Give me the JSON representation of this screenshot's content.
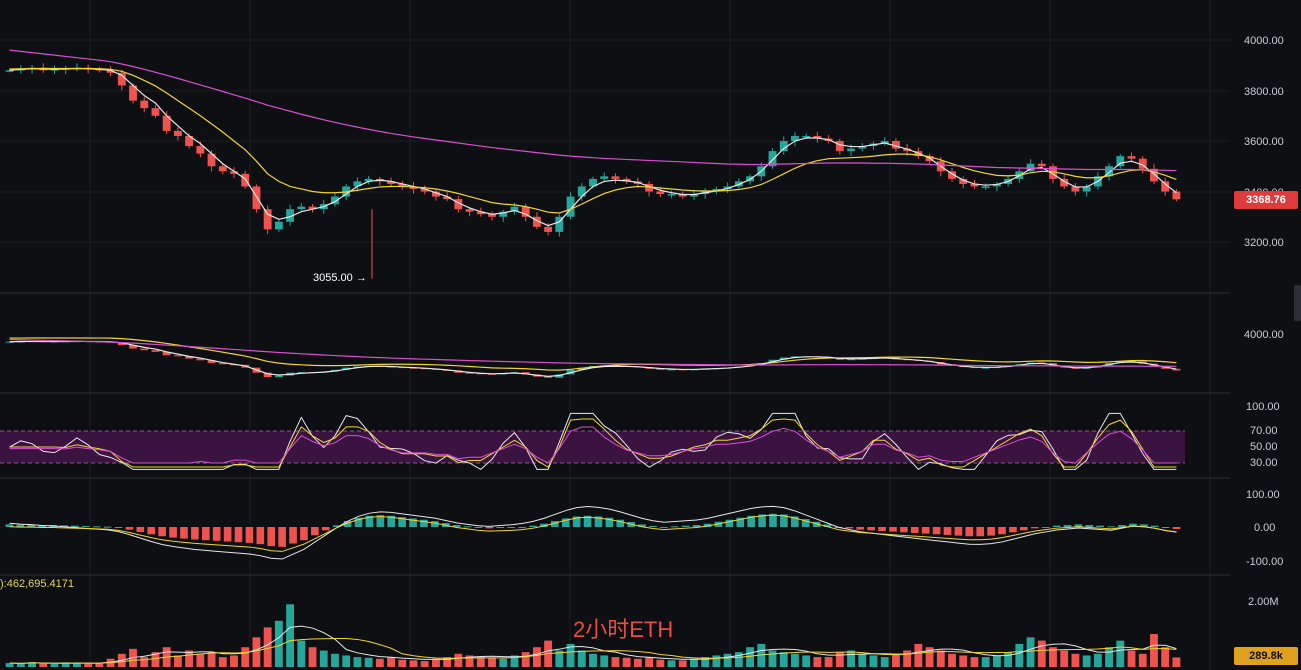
{
  "colors": {
    "up": "#26a69a",
    "down": "#ef5350",
    "ma_fast": "#e6e6e6",
    "ma_mid": "#f1d530",
    "ma_slow": "#d94fd1",
    "rsi_band": "#3a1340"
  },
  "overlay_title": "2小时ETH",
  "price_tag": "3368.76",
  "volume_tag": "289.8k",
  "low_marker": "3055.00 →",
  "volume_readout": "):462,695.4171",
  "chart_data": [
    {
      "type": "candlestick",
      "title": "",
      "y_ticks": [
        "4000.00",
        "3800.00",
        "3600.00",
        "3400.00",
        "3200.00"
      ],
      "ylim": [
        3000,
        4100
      ],
      "series": [
        {
          "name": "",
          "values": []
        }
      ],
      "last_price": 3368.76,
      "low_annotation": 3055.0,
      "close_path": [
        3880,
        3885,
        3890,
        3880,
        3885,
        3888,
        3890,
        3885,
        3880,
        3870,
        3820,
        3760,
        3730,
        3700,
        3640,
        3620,
        3580,
        3550,
        3500,
        3480,
        3470,
        3420,
        3330,
        3250,
        3280,
        3330,
        3340,
        3330,
        3350,
        3380,
        3420,
        3440,
        3450,
        3440,
        3430,
        3420,
        3410,
        3400,
        3380,
        3370,
        3330,
        3320,
        3310,
        3300,
        3320,
        3340,
        3300,
        3260,
        3240,
        3300,
        3380,
        3420,
        3450,
        3460,
        3450,
        3440,
        3430,
        3400,
        3390,
        3390,
        3380,
        3390,
        3400,
        3410,
        3420,
        3440,
        3460,
        3500,
        3560,
        3600,
        3620,
        3620,
        3610,
        3600,
        3560,
        3570,
        3580,
        3590,
        3600,
        3570,
        3560,
        3540,
        3520,
        3480,
        3450,
        3430,
        3420,
        3420,
        3430,
        3450,
        3480,
        3510,
        3500,
        3450,
        3420,
        3400,
        3420,
        3460,
        3500,
        3540,
        3530,
        3490,
        3440,
        3400,
        3369
      ],
      "ma_fast_path": [
        3880,
        3884,
        3886,
        3885,
        3884,
        3885,
        3887,
        3886,
        3884,
        3880,
        3860,
        3820,
        3780,
        3750,
        3700,
        3660,
        3620,
        3590,
        3550,
        3510,
        3480,
        3450,
        3380,
        3310,
        3290,
        3300,
        3320,
        3330,
        3340,
        3360,
        3390,
        3420,
        3440,
        3445,
        3440,
        3430,
        3420,
        3410,
        3395,
        3380,
        3355,
        3335,
        3320,
        3310,
        3315,
        3325,
        3310,
        3285,
        3265,
        3280,
        3330,
        3380,
        3420,
        3440,
        3445,
        3442,
        3436,
        3420,
        3405,
        3395,
        3388,
        3388,
        3395,
        3402,
        3412,
        3428,
        3448,
        3480,
        3525,
        3570,
        3600,
        3612,
        3612,
        3605,
        3585,
        3578,
        3578,
        3585,
        3592,
        3580,
        3568,
        3552,
        3532,
        3500,
        3470,
        3445,
        3430,
        3425,
        3428,
        3440,
        3462,
        3490,
        3495,
        3470,
        3440,
        3418,
        3418,
        3440,
        3475,
        3512,
        3520,
        3505,
        3470,
        3430,
        3395
      ],
      "ma_mid_path": [
        3885,
        3886,
        3887,
        3887,
        3887,
        3887,
        3887,
        3887,
        3886,
        3884,
        3876,
        3860,
        3840,
        3818,
        3790,
        3760,
        3730,
        3700,
        3668,
        3635,
        3600,
        3565,
        3520,
        3470,
        3440,
        3420,
        3410,
        3400,
        3395,
        3395,
        3398,
        3405,
        3412,
        3418,
        3420,
        3420,
        3418,
        3415,
        3410,
        3402,
        3392,
        3380,
        3368,
        3356,
        3350,
        3347,
        3340,
        3330,
        3318,
        3315,
        3330,
        3350,
        3372,
        3392,
        3406,
        3415,
        3420,
        3418,
        3414,
        3410,
        3406,
        3403,
        3402,
        3402,
        3404,
        3408,
        3415,
        3428,
        3448,
        3470,
        3492,
        3510,
        3522,
        3530,
        3532,
        3534,
        3536,
        3540,
        3545,
        3548,
        3548,
        3545,
        3538,
        3525,
        3510,
        3495,
        3482,
        3472,
        3464,
        3462,
        3465,
        3474,
        3480,
        3478,
        3470,
        3460,
        3454,
        3455,
        3462,
        3474,
        3484,
        3486,
        3478,
        3464,
        3448
      ],
      "ma_slow_path": [
        3960,
        3955,
        3950,
        3945,
        3940,
        3935,
        3930,
        3925,
        3920,
        3914,
        3905,
        3895,
        3884,
        3872,
        3860,
        3848,
        3835,
        3822,
        3809,
        3796,
        3783,
        3770,
        3756,
        3742,
        3730,
        3718,
        3706,
        3695,
        3684,
        3674,
        3664,
        3655,
        3646,
        3638,
        3630,
        3623,
        3616,
        3610,
        3604,
        3598,
        3592,
        3586,
        3580,
        3574,
        3569,
        3564,
        3559,
        3554,
        3549,
        3544,
        3540,
        3537,
        3534,
        3531,
        3529,
        3527,
        3525,
        3523,
        3521,
        3519,
        3517,
        3515,
        3513,
        3511,
        3509,
        3508,
        3507,
        3507,
        3508,
        3509,
        3510,
        3511,
        3512,
        3513,
        3513,
        3513,
        3513,
        3512,
        3512,
        3511,
        3510,
        3509,
        3507,
        3505,
        3503,
        3501,
        3499,
        3497,
        3495,
        3494,
        3493,
        3492,
        3491,
        3490,
        3489,
        3488,
        3487,
        3487,
        3487,
        3487,
        3487,
        3486,
        3485,
        3484,
        3483
      ]
    },
    {
      "type": "line",
      "title": "",
      "y_ticks": [
        "4000.00"
      ],
      "series": [
        {
          "name": "",
          "values": []
        }
      ]
    },
    {
      "type": "line",
      "title": "",
      "y_ticks": [
        "100.00",
        "70.00",
        "50.00",
        "30.00"
      ],
      "ylim": [
        0,
        100
      ],
      "band": [
        30,
        70
      ],
      "series": [
        {
          "name": "",
          "values": []
        }
      ]
    },
    {
      "type": "bar",
      "title": "",
      "y_ticks": [
        "100.00",
        "0.00",
        "-100.00"
      ],
      "ylim": [
        -110,
        110
      ],
      "histogram": [
        8,
        7,
        7,
        6,
        6,
        5,
        4,
        3,
        2,
        1,
        -2,
        -8,
        -15,
        -22,
        -28,
        -32,
        -35,
        -38,
        -40,
        -42,
        -44,
        -46,
        -48,
        -52,
        -58,
        -60,
        -50,
        -40,
        -25,
        -10,
        5,
        18,
        28,
        34,
        36,
        34,
        30,
        26,
        22,
        18,
        12,
        6,
        2,
        -2,
        -4,
        -3,
        -2,
        0,
        4,
        10,
        18,
        26,
        32,
        34,
        32,
        28,
        22,
        15,
        8,
        3,
        0,
        2,
        4,
        6,
        10,
        16,
        22,
        28,
        34,
        38,
        40,
        38,
        32,
        24,
        16,
        8,
        0,
        -4,
        -8,
        -10,
        -12,
        -14,
        -16,
        -18,
        -20,
        -22,
        -24,
        -26,
        -28,
        -28,
        -26,
        -22,
        -16,
        -10,
        -4,
        0,
        4,
        6,
        8,
        6,
        4,
        2,
        6,
        10,
        8,
        4,
        -2,
        -6
      ]
    },
    {
      "type": "bar",
      "title": "",
      "y_ticks": [
        "2.00M"
      ],
      "ylim": [
        0,
        2.3
      ],
      "volumes": [
        0.12,
        0.1,
        0.15,
        0.11,
        0.09,
        0.14,
        0.12,
        0.1,
        0.13,
        0.25,
        0.4,
        0.55,
        0.3,
        0.45,
        0.6,
        0.35,
        0.5,
        0.4,
        0.45,
        0.3,
        0.35,
        0.6,
        0.9,
        1.2,
        1.4,
        1.9,
        0.8,
        0.6,
        0.5,
        0.4,
        0.35,
        0.3,
        0.28,
        0.25,
        0.3,
        0.22,
        0.2,
        0.18,
        0.25,
        0.3,
        0.4,
        0.35,
        0.3,
        0.28,
        0.25,
        0.35,
        0.45,
        0.6,
        0.8,
        0.5,
        0.7,
        0.5,
        0.4,
        0.35,
        0.3,
        0.28,
        0.25,
        0.3,
        0.22,
        0.2,
        0.2,
        0.25,
        0.3,
        0.35,
        0.4,
        0.45,
        0.6,
        0.7,
        0.5,
        0.45,
        0.4,
        0.35,
        0.3,
        0.3,
        0.45,
        0.5,
        0.4,
        0.35,
        0.3,
        0.4,
        0.5,
        0.7,
        0.6,
        0.5,
        0.4,
        0.35,
        0.3,
        0.3,
        0.35,
        0.45,
        0.7,
        0.9,
        0.8,
        0.6,
        0.5,
        0.4,
        0.35,
        0.4,
        0.6,
        0.8,
        0.5,
        0.4,
        1.0,
        0.6,
        0.29
      ]
    }
  ]
}
